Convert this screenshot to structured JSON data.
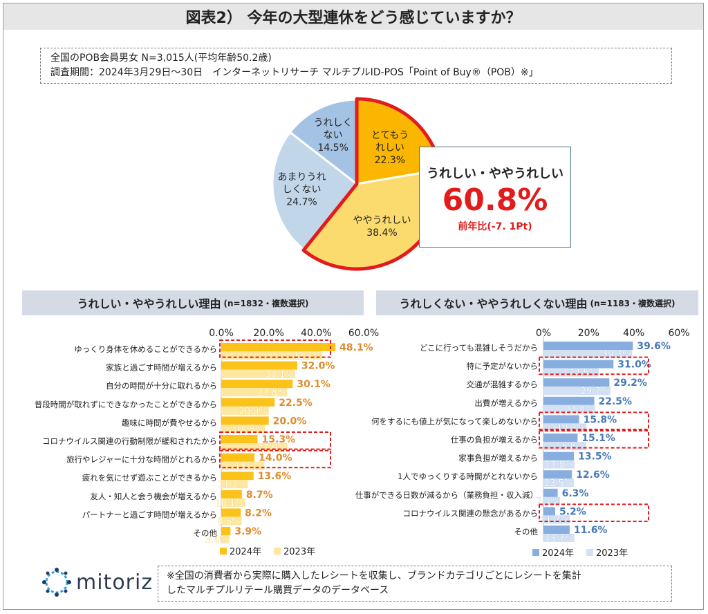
{
  "title": "図表2） 今年の大型連休をどう感じていますか？",
  "info": {
    "line1": "全国のPOB会員男女 N=3,015人(平均年齢50.2歳)",
    "line2": "調査期間：2024年3月29日～30日　インターネットリサーチ マルチプルID-POS「Point of Buy®（POB）※」"
  },
  "callout": {
    "label": "うれしい・ややうれしい",
    "value": "60.8%",
    "diff": "前年比(-7. 1Pt)"
  },
  "left_header": {
    "main": "うれしい・ややうれしい理由",
    "sub": "(n=1832・複数選択)"
  },
  "right_header": {
    "main": "うれしくない・ややうれしくない理由",
    "sub": "(n=1183・複数選択)"
  },
  "footer_note": {
    "line1": "※全国の消費者から実際に購入したレシートを収集し、ブランドカテゴリごとにレシートを集計",
    "line2": "したマルチプルリテール購買データのデータベース"
  },
  "logo": "mitoriz",
  "colors": {
    "pie_very": "#fbb700",
    "pie_some": "#fcdb6e",
    "pie_notmuch": "#c2d6ea",
    "pie_not": "#a4c3e4",
    "highlight": "#e21b1b",
    "left2024": "#fbc21a",
    "left2023": "#fde7a1",
    "right2024": "#88aee0",
    "right2023": "#d3e1f3",
    "left_label": "#e08b2b",
    "right_label": "#4679b8"
  },
  "chart_data": [
    {
      "type": "pie",
      "slices": [
        {
          "label": "とてもうれしい",
          "value": 22.3,
          "text1": "とてもう",
          "text2": "れしい",
          "pct": "22.3%"
        },
        {
          "label": "ややうれしい",
          "value": 38.4,
          "text1": "ややうれしい",
          "text2": "",
          "pct": "38.4%"
        },
        {
          "label": "あまりうれしくない",
          "value": 24.7,
          "text1": "あまりうれ",
          "text2": "しくない",
          "pct": "24.7%"
        },
        {
          "label": "うれしくない",
          "value": 14.5,
          "text1": "うれしく",
          "text2": "ない",
          "pct": "14.5%"
        }
      ]
    },
    {
      "type": "bar",
      "orientation": "horizontal",
      "xlim": [
        0,
        60
      ],
      "ticks": [
        "0.0%",
        "20.0%",
        "40.0%",
        "60.0%"
      ],
      "categories": [
        "ゆっくり身体を休めることができるから",
        "家族と過ごす時間が増えるから",
        "自分の時間が十分に取れるから",
        "普段時間が取れずにできなかったことができるから",
        "趣味に時間が費やせるから",
        "コロナウイルス関連の行動制限が緩和されたから",
        "旅行やレジャーに十分な時間がとれるから",
        "疲れを気にせず遊ぶことができるから",
        "友人・知人と会う機会が増えるから",
        "パートナーと過ごす時間が増えるから",
        "その他"
      ],
      "series": [
        {
          "name": "2024年",
          "values": [
            48.1,
            32.0,
            30.1,
            22.5,
            20.0,
            15.3,
            14.0,
            13.6,
            8.7,
            8.2,
            3.9
          ]
        },
        {
          "name": "2023年",
          "values": [
            42.6,
            31.1,
            27.8,
            20.0,
            18.5,
            27.9,
            18.1,
            11.2,
            10.1,
            8.6,
            3.4
          ]
        }
      ],
      "labels2024": [
        "48.1%",
        "32.0%",
        "30.1%",
        "22.5%",
        "20.0%",
        "15.3%",
        "14.0%",
        "13.6%",
        "8.7%",
        "8.2%",
        "3.9%"
      ],
      "labels2023": [
        "42.6%",
        "31.1%",
        "27.8%",
        "20.0%",
        "18.5%",
        "27.9%",
        "18.1%",
        "11.2%",
        "10.1%",
        "8.6%",
        "3.4%"
      ],
      "highlight_rows": [
        0,
        5,
        6
      ],
      "legend": [
        "2024年",
        "2023年"
      ]
    },
    {
      "type": "bar",
      "orientation": "horizontal",
      "xlim": [
        0,
        60
      ],
      "ticks": [
        "0%",
        "20%",
        "40%",
        "60%"
      ],
      "categories": [
        "どこに行っても混雑しそうだから",
        "特に予定がないから",
        "交通が混雑するから",
        "出費が増えるから",
        "何をするにも値上が気になって楽しめないから",
        "仕事の負担が増えるから",
        "家事負担が増えるから",
        "1人でゆっくりする時間がとれないから",
        "仕事ができる日数が減るから（業務負担・収入減）",
        "コロナウイルス関連の懸念があるから",
        "その他"
      ],
      "series": [
        {
          "name": "2024年",
          "values": [
            39.6,
            31.0,
            29.2,
            22.5,
            15.8,
            15.1,
            13.5,
            12.6,
            6.3,
            5.2,
            11.6
          ]
        },
        {
          "name": "2023年",
          "values": [
            39.3,
            24.5,
            29.7,
            22.8,
            19.1,
            18.8,
            13.8,
            13.5,
            7.4,
            11.7,
            13.7
          ]
        }
      ],
      "labels2024": [
        "39.6%",
        "31.0%",
        "29.2%",
        "22.5%",
        "15.8%",
        "15.1%",
        "13.5%",
        "12.6%",
        "6.3%",
        "5.2%",
        "11.6%"
      ],
      "labels2023": [
        "39.3%",
        "24.5%",
        "29.7%",
        "22.8%",
        "19.1%",
        "18.8%",
        "13.8%",
        "13.5%",
        "7.4%",
        "11.7%",
        "13.7%"
      ],
      "highlight_rows": [
        1,
        4,
        5,
        9
      ],
      "legend": [
        "2024年",
        "2023年"
      ]
    }
  ]
}
